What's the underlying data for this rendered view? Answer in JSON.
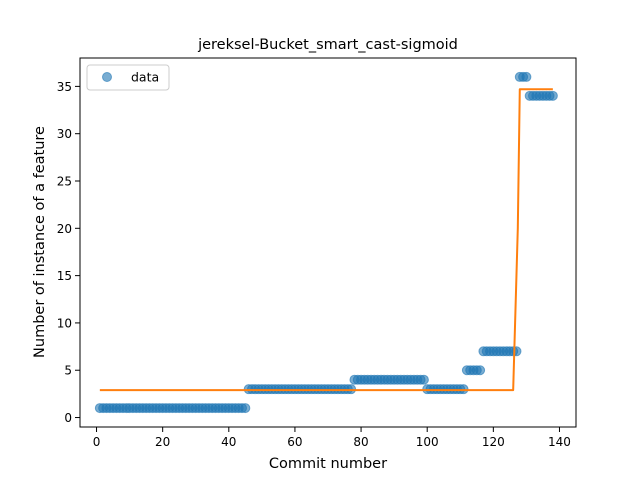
{
  "chart_data": {
    "type": "scatter",
    "title": "jereksel-Bucket_smart_cast-sigmoid",
    "xlabel": "Commit number",
    "ylabel": "Number of instance of a feature",
    "xlim": [
      -5,
      145
    ],
    "ylim": [
      -1,
      38
    ],
    "xticks": [
      0,
      20,
      40,
      60,
      80,
      100,
      120,
      140
    ],
    "yticks": [
      0,
      5,
      10,
      15,
      20,
      25,
      30,
      35
    ],
    "grid": false,
    "legend": {
      "position": "top-left",
      "entries": [
        "data"
      ]
    },
    "series": [
      {
        "name": "data",
        "kind": "points",
        "color": "#1f77b4",
        "segments": [
          {
            "x_from": 1,
            "x_to": 45,
            "y": 1
          },
          {
            "x_from": 46,
            "x_to": 77,
            "y": 3
          },
          {
            "x_from": 78,
            "x_to": 99,
            "y": 4
          },
          {
            "x_from": 100,
            "x_to": 111,
            "y": 3
          },
          {
            "x_from": 112,
            "x_to": 116,
            "y": 5
          },
          {
            "x_from": 117,
            "x_to": 127,
            "y": 7
          },
          {
            "x_from": 128,
            "x_to": 130,
            "y": 36
          },
          {
            "x_from": 131,
            "x_to": 138,
            "y": 34
          }
        ]
      },
      {
        "kind": "line",
        "color": "#ff7f0e",
        "x": [
          1,
          126,
          127.4,
          128,
          138
        ],
        "y": [
          2.9,
          2.9,
          20,
          34.7,
          34.7
        ]
      }
    ]
  }
}
